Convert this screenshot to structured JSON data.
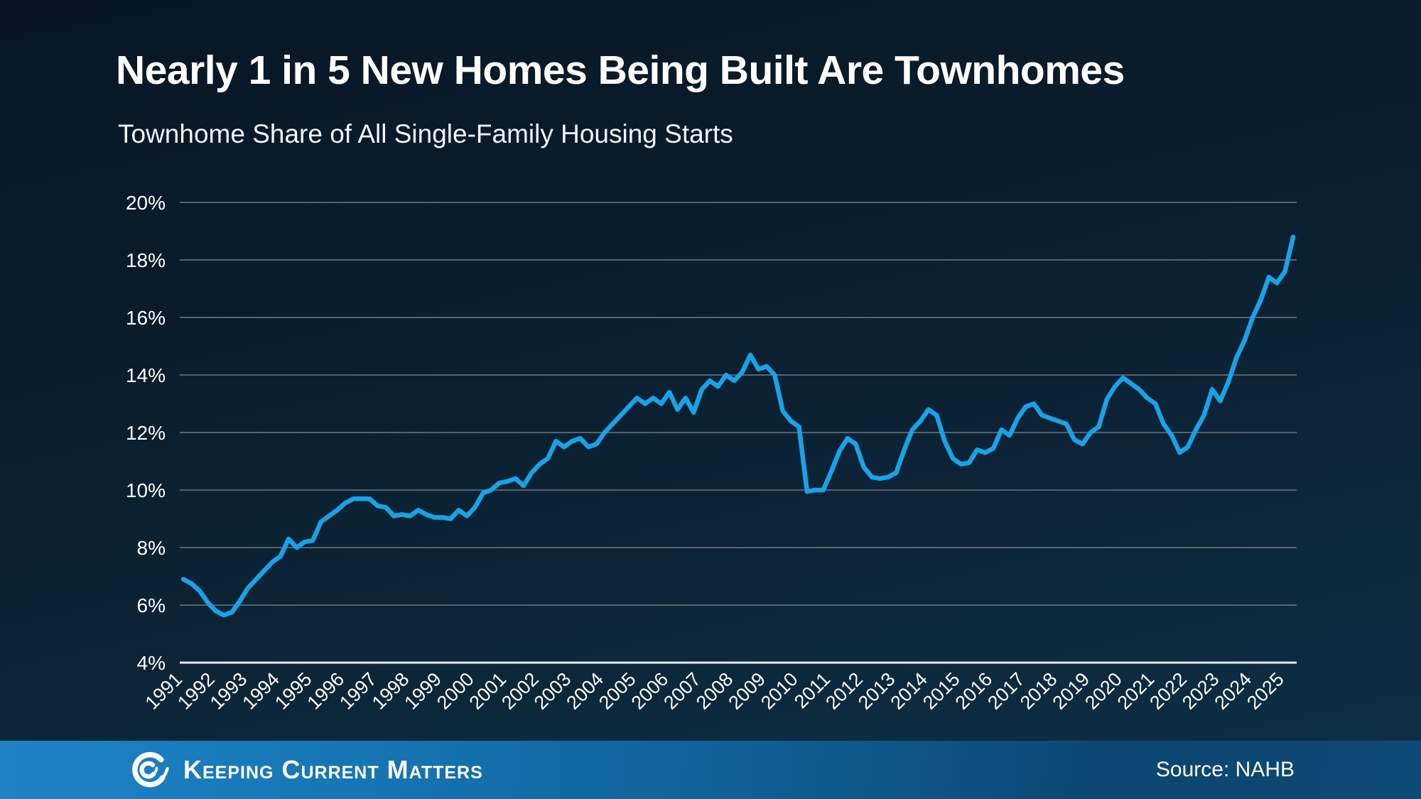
{
  "title": "Nearly 1 in 5 New Homes Being Built Are Townhomes",
  "subtitle": "Townhome Share of All Single-Family Housing Starts",
  "footer": {
    "brand": "Keeping Current Matters",
    "source": "Source: NAHB"
  },
  "colors": {
    "line": "#18a3e8",
    "gridline": "#68747e",
    "axis_line": "#e4ebf0",
    "label_text": "#ffffff",
    "footer_left": "#1e84c6",
    "footer_right": "#0c4671"
  },
  "chart_data": {
    "type": "line",
    "title": "Townhome Share of All Single-Family Housing Starts",
    "frequency": "quarterly",
    "x_tick_years": [
      "1991",
      "1992",
      "1993",
      "1994",
      "1995",
      "1996",
      "1997",
      "1998",
      "1999",
      "2000",
      "2001",
      "2002",
      "2003",
      "2004",
      "2005",
      "2006",
      "2007",
      "2008",
      "2009",
      "2010",
      "2011",
      "2012",
      "2013",
      "2014",
      "2015",
      "2016",
      "2017",
      "2018",
      "2019",
      "2020",
      "2021",
      "2022",
      "2023",
      "2024",
      "2025"
    ],
    "y_tick_labels": [
      "20%",
      "18%",
      "16%",
      "14%",
      "12%",
      "10%",
      "8%",
      "6%",
      "4%"
    ],
    "ylim": [
      4,
      20
    ],
    "grid": true,
    "legend": false,
    "series": [
      {
        "name": "Townhome share of single-family housing starts (%)",
        "start": "1991 Q1",
        "end": "2025 Q2",
        "values": [
          6.9,
          6.75,
          6.5,
          6.1,
          5.8,
          5.65,
          5.75,
          6.15,
          6.6,
          6.9,
          7.2,
          7.5,
          7.7,
          8.3,
          8.0,
          8.2,
          8.25,
          8.9,
          9.1,
          9.3,
          9.55,
          9.7,
          9.7,
          9.7,
          9.45,
          9.4,
          9.1,
          9.15,
          9.1,
          9.3,
          9.15,
          9.05,
          9.05,
          9.0,
          9.3,
          9.1,
          9.4,
          9.9,
          10.0,
          10.25,
          10.3,
          10.4,
          10.15,
          10.6,
          10.9,
          11.1,
          11.7,
          11.5,
          11.7,
          11.8,
          11.5,
          11.6,
          12.0,
          12.3,
          12.6,
          12.9,
          13.2,
          13.0,
          13.2,
          13.0,
          13.4,
          12.8,
          13.2,
          12.7,
          13.5,
          13.8,
          13.6,
          14.0,
          13.8,
          14.1,
          14.7,
          14.2,
          14.3,
          14.0,
          12.75,
          12.4,
          12.2,
          9.95,
          10.0,
          10.0,
          10.65,
          11.35,
          11.8,
          11.6,
          10.8,
          10.45,
          10.4,
          10.45,
          10.6,
          11.4,
          12.1,
          12.4,
          12.8,
          12.6,
          11.7,
          11.1,
          10.9,
          10.95,
          11.4,
          11.3,
          11.45,
          12.1,
          11.9,
          12.5,
          12.9,
          13.0,
          12.6,
          12.5,
          12.4,
          12.3,
          11.75,
          11.6,
          12.0,
          12.2,
          13.15,
          13.6,
          13.9,
          13.7,
          13.5,
          13.2,
          13.0,
          12.3,
          11.9,
          11.3,
          11.5,
          12.1,
          12.6,
          13.5,
          13.1,
          13.75,
          14.6,
          15.2,
          16.0,
          16.6,
          17.4,
          17.2,
          17.6,
          18.8
        ]
      }
    ]
  }
}
